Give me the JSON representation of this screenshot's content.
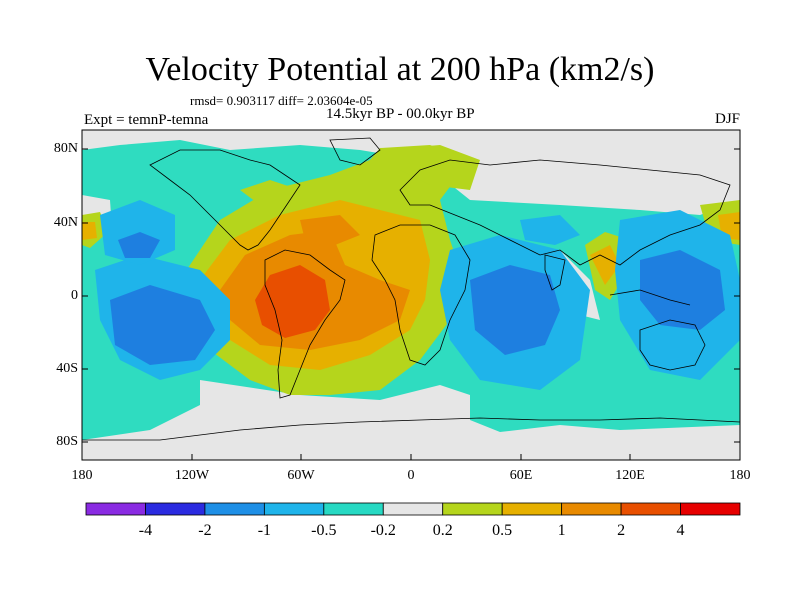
{
  "title": "Velocity Potential at 200 hPa (km2/s)",
  "stats": "rmsd= 0.903117 diff= 2.03604e-05",
  "left_label": "Expt = temnP-temna",
  "center_label": "14.5kyr BP - 00.0kyr BP",
  "right_label": "DJF",
  "y_ticks": [
    "80N",
    "40N",
    "0",
    "40S",
    "80S"
  ],
  "x_ticks": [
    "180",
    "120W",
    "60W",
    "0",
    "60E",
    "120E",
    "180"
  ],
  "colorbar": {
    "colors": [
      "#8a2be2",
      "#2b2be0",
      "#1e8fe6",
      "#1fb4ea",
      "#27d9c3",
      "#e6e6e6",
      "#b5d51c",
      "#e6b000",
      "#e88a00",
      "#e84f00",
      "#e60000"
    ],
    "labels": [
      "-4",
      "-2",
      "-1",
      "-0.5",
      "-0.2",
      "0.2",
      "0.5",
      "1",
      "2",
      "4"
    ]
  },
  "palette": {
    "neg_light": "#2fdcc0",
    "neg_mid": "#1fb4ea",
    "neg_strong": "#1e7fe0",
    "neutral": "#e6e6e6",
    "pos_light": "#b5d51c",
    "pos_mid": "#e6b000",
    "pos_strong": "#e88a00",
    "pos_max": "#e84f00"
  }
}
